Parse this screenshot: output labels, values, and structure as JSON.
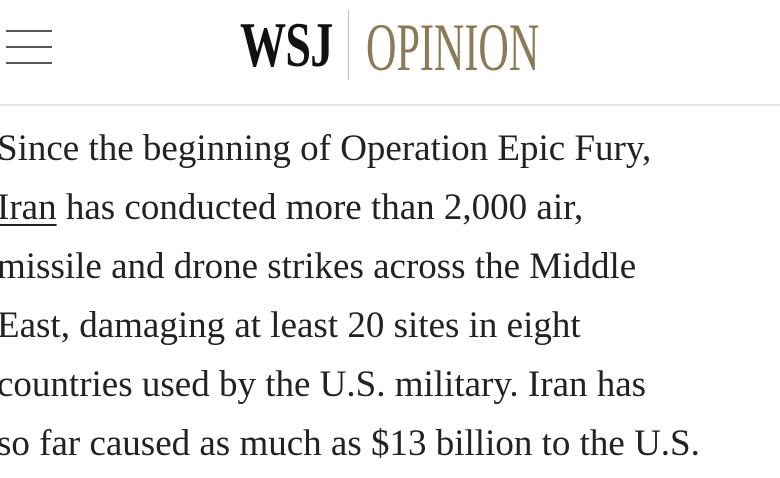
{
  "header": {
    "brand": "WSJ",
    "section": "OPINION"
  },
  "article": {
    "lines": [
      {
        "text": "Since the beginning of Operation Epic Fury,"
      },
      {
        "link": "Iran",
        "text": " has conducted more than 2,000 air,"
      },
      {
        "text": "missile and drone strikes across the Middle"
      },
      {
        "text": "East, damaging at least 20 sites in eight"
      },
      {
        "text": "countries used by the U.S. military. Iran has"
      },
      {
        "text": "so far caused as much as $13 billion to the U.S."
      }
    ]
  }
}
